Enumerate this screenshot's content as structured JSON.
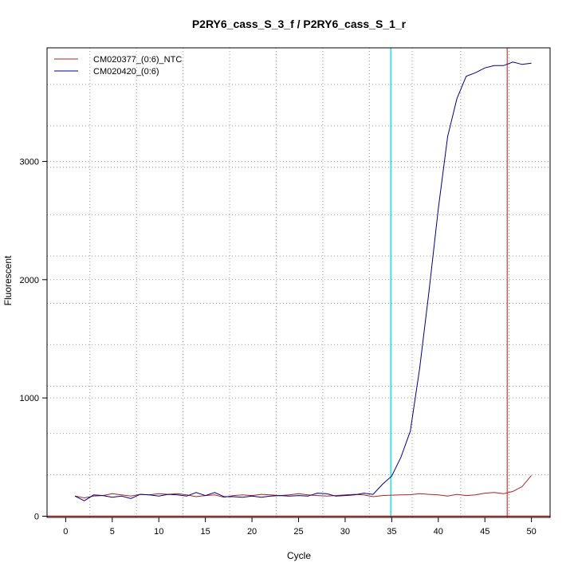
{
  "chart_data": {
    "type": "line",
    "title": "P2RY6_cass_S_3_f / P2RY6_cass_S_1_r",
    "xlabel": "Cycle",
    "ylabel": "Fluorescent",
    "xlim": [
      -2,
      52
    ],
    "ylim": [
      -10,
      3960
    ],
    "x_ticks": [
      0,
      5,
      10,
      15,
      20,
      25,
      30,
      35,
      40,
      45,
      50
    ],
    "y_ticks": [
      0,
      1000,
      2000,
      3000
    ],
    "x_minor_grid": [
      2.6,
      7.6,
      12.6,
      17.6,
      22.6,
      27.6,
      32.6,
      37.2,
      42.4,
      47.6
    ],
    "y_minor_grid": [
      350,
      700,
      1100,
      1450,
      1800,
      2200,
      2550,
      2950,
      3300,
      3650
    ],
    "grid": true,
    "legend_position": "top-left",
    "threshold_lines": [
      {
        "axis": "x",
        "value": 34.9,
        "color": "#00e5ee"
      },
      {
        "axis": "x",
        "value": 47.4,
        "color": "#e05050"
      },
      {
        "axis": "y",
        "value": 0,
        "color": "#cd0000"
      }
    ],
    "x": [
      1,
      2,
      3,
      4,
      5,
      6,
      7,
      8,
      9,
      10,
      11,
      12,
      13,
      14,
      15,
      16,
      17,
      18,
      19,
      20,
      21,
      22,
      23,
      24,
      25,
      26,
      27,
      28,
      29,
      30,
      31,
      32,
      33,
      34,
      35,
      36,
      37,
      38,
      39,
      40,
      41,
      42,
      43,
      44,
      45,
      46,
      47,
      48,
      49,
      50
    ],
    "series": [
      {
        "name": "CM020377_(0:6)_NTC",
        "color": "#b22222",
        "values": [
          170,
          155,
          170,
          175,
          190,
          180,
          170,
          185,
          180,
          190,
          185,
          190,
          180,
          165,
          175,
          180,
          160,
          175,
          180,
          175,
          185,
          180,
          175,
          180,
          190,
          180,
          175,
          170,
          175,
          180,
          185,
          180,
          165,
          175,
          178,
          180,
          182,
          190,
          185,
          180,
          170,
          185,
          175,
          180,
          195,
          200,
          190,
          210,
          250,
          345
        ]
      },
      {
        "name": "CM020420_(0:6)",
        "color": "#00008b",
        "values": [
          170,
          130,
          180,
          175,
          160,
          170,
          150,
          185,
          180,
          170,
          185,
          180,
          170,
          200,
          175,
          200,
          165,
          165,
          160,
          170,
          160,
          170,
          175,
          170,
          175,
          170,
          195,
          190,
          170,
          175,
          180,
          195,
          185,
          270,
          340,
          500,
          720,
          1250,
          1900,
          2600,
          3210,
          3530,
          3720,
          3750,
          3790,
          3810,
          3810,
          3840,
          3820,
          3830
        ]
      }
    ]
  }
}
